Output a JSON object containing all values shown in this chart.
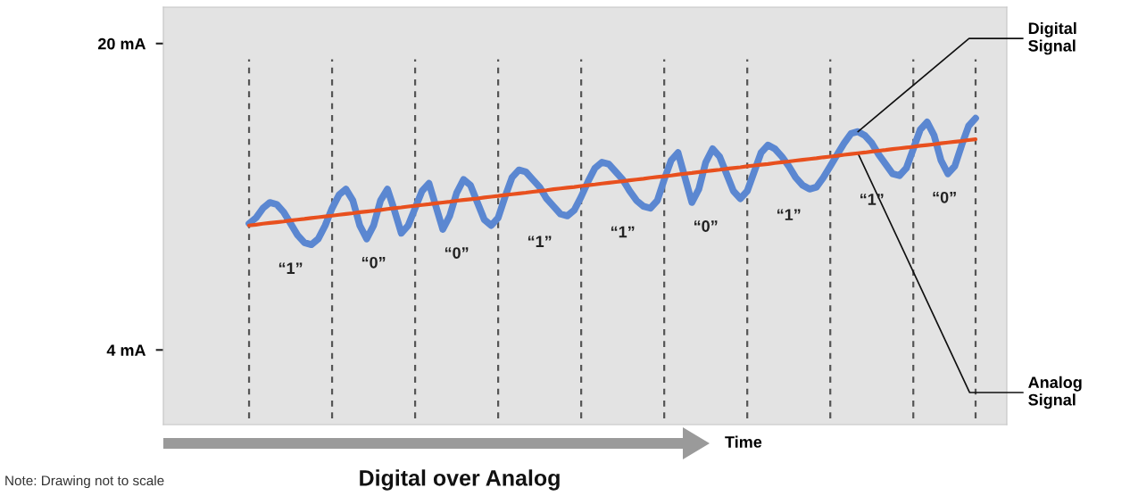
{
  "chart_data": {
    "type": "line",
    "title": "Digital over Analog",
    "xlabel": "Time",
    "categories": [
      null,
      null,
      null,
      null,
      null,
      null,
      null,
      null,
      null,
      null,
      null,
      null,
      null,
      null,
      null,
      null,
      null,
      null,
      null,
      null,
      null,
      null,
      null,
      null,
      null,
      null,
      null,
      null,
      null,
      null,
      null,
      null,
      null,
      null,
      null,
      null,
      null,
      null,
      null,
      null,
      null,
      null,
      null,
      null,
      null,
      null,
      null,
      null,
      null,
      null,
      null,
      null,
      null,
      null,
      null,
      null,
      null,
      null,
      null,
      null,
      null,
      null,
      null,
      null,
      null,
      null,
      null,
      null,
      null,
      null,
      null,
      null,
      null,
      null,
      null,
      null,
      null,
      null,
      null,
      null,
      null,
      null,
      null,
      null,
      null,
      null,
      null,
      null,
      null,
      null,
      null,
      null,
      null,
      null,
      null,
      null,
      null,
      null,
      null,
      null,
      null,
      null,
      null,
      null,
      null,
      null
    ],
    "ylim": [
      0.1,
      21.9
    ],
    "yticks": [
      {
        "value": 20,
        "label": "20 mA"
      },
      {
        "value": 4,
        "label": "4 mA"
      }
    ],
    "tick_labels": "y",
    "grid": "x",
    "marker": "none",
    "line_style": "solid",
    "series": [
      {
        "name": "Digital\nSignal",
        "color": "#5b87d1",
        "values": [
          10.6,
          10.9,
          11.4,
          11.7,
          11.6,
          11.2,
          10.6,
          10.0,
          9.6,
          9.5,
          9.8,
          10.5,
          11.4,
          12.1,
          12.4,
          11.8,
          10.5,
          9.8,
          10.5,
          11.8,
          12.4,
          11.3,
          10.1,
          10.5,
          11.4,
          12.3,
          12.7,
          11.5,
          10.3,
          11.0,
          12.2,
          12.9,
          12.6,
          11.7,
          10.8,
          10.5,
          10.9,
          12.0,
          13.0,
          13.4,
          13.3,
          12.9,
          12.5,
          11.9,
          11.5,
          11.1,
          11.0,
          11.3,
          12.0,
          12.8,
          13.5,
          13.8,
          13.7,
          13.3,
          12.9,
          12.3,
          11.8,
          11.5,
          11.4,
          11.8,
          12.9,
          13.9,
          14.3,
          13.0,
          11.7,
          12.4,
          13.8,
          14.5,
          14.1,
          13.2,
          12.3,
          11.9,
          12.3,
          13.3,
          14.3,
          14.7,
          14.5,
          14.1,
          13.6,
          13.0,
          12.6,
          12.4,
          12.5,
          13.0,
          13.6,
          14.2,
          14.8,
          15.3,
          15.4,
          15.2,
          14.8,
          14.2,
          13.7,
          13.2,
          13.1,
          13.5,
          14.5,
          15.5,
          15.9,
          15.2,
          13.9,
          13.2,
          13.6,
          14.7,
          15.7,
          16.1
        ]
      },
      {
        "name": "Analog\nSignal",
        "color": "#e8501e",
        "values": [
          10.5,
          10.54,
          10.59,
          10.63,
          10.67,
          10.71,
          10.76,
          10.8,
          10.84,
          10.89,
          10.93,
          10.97,
          11.01,
          11.06,
          11.1,
          11.14,
          11.19,
          11.23,
          11.27,
          11.31,
          11.36,
          11.4,
          11.44,
          11.49,
          11.53,
          11.57,
          11.61,
          11.66,
          11.7,
          11.74,
          11.79,
          11.83,
          11.87,
          11.91,
          11.96,
          12.0,
          12.04,
          12.09,
          12.13,
          12.17,
          12.21,
          12.26,
          12.3,
          12.34,
          12.39,
          12.43,
          12.47,
          12.51,
          12.56,
          12.6,
          12.64,
          12.69,
          12.73,
          12.77,
          12.81,
          12.86,
          12.9,
          12.94,
          12.99,
          13.03,
          13.07,
          13.11,
          13.16,
          13.2,
          13.24,
          13.29,
          13.33,
          13.37,
          13.41,
          13.46,
          13.5,
          13.54,
          13.59,
          13.63,
          13.67,
          13.71,
          13.76,
          13.8,
          13.84,
          13.89,
          13.93,
          13.97,
          14.01,
          14.06,
          14.1,
          14.14,
          14.19,
          14.23,
          14.27,
          14.31,
          14.36,
          14.4,
          14.44,
          14.49,
          14.53,
          14.57,
          14.61,
          14.66,
          14.7,
          14.74,
          14.79,
          14.83,
          14.87,
          14.91,
          14.96,
          15.0
        ]
      }
    ],
    "annotations": [
      "“1”",
      "“0”",
      "“0”",
      "“1”",
      "“1”",
      "“0”",
      "“1”",
      "“1”",
      "“0”",
      "Note: Drawing not to scale"
    ]
  }
}
